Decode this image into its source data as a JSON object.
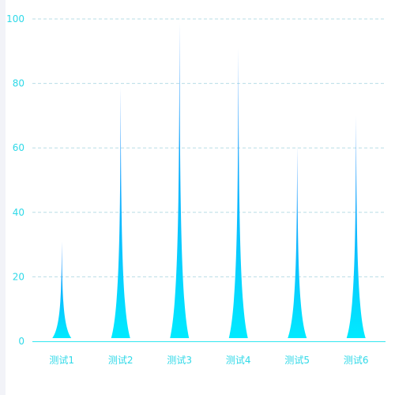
{
  "chart_data": {
    "type": "bar",
    "style": "pictorial-spike",
    "categories": [
      "测试1",
      "测试2",
      "测试3",
      "测试4",
      "测试5",
      "测试6"
    ],
    "values": [
      31,
      79,
      99,
      91,
      61,
      70
    ],
    "ylim": [
      0,
      100
    ],
    "yticks": [
      0,
      20,
      40,
      60,
      80,
      100
    ],
    "title": "",
    "xlabel": "",
    "ylabel": "",
    "grid": true,
    "grid_style": "dashed",
    "legend": false
  },
  "colors": {
    "spike_top": "#1e7fff",
    "spike_bottom": "#00eaff",
    "axis": "#33e6f0",
    "tick_label": "#2fd9e8",
    "grid": "#b8dde6",
    "left_strip": "#f2f3f8"
  }
}
